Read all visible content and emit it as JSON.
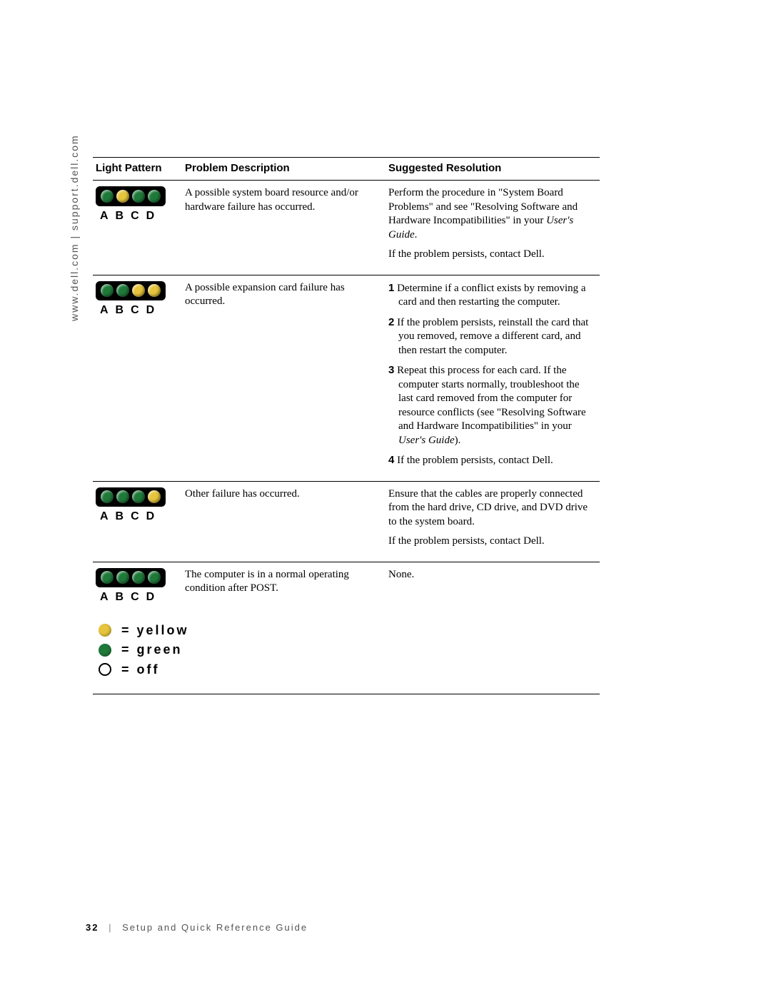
{
  "colors": {
    "yellow": "#e6c43c",
    "green": "#1f7a3a",
    "off_border": "#000000",
    "black": "#000000",
    "white": "#ffffff"
  },
  "side_text": "www.dell.com | support.dell.com",
  "headers": {
    "pattern": "Light Pattern",
    "description": "Problem Description",
    "resolution": "Suggested Resolution"
  },
  "rows": [
    {
      "lights": [
        "green",
        "yellow",
        "green",
        "green"
      ],
      "labels": "ABCD",
      "description": "A possible system board resource and/or hardware failure has occurred.",
      "res_paras": [
        "Perform the procedure in \"System Board Problems\" and see \"Resolving Software and Hardware Incompatibilities\" in your <i>User's Guide</i>.",
        "If the problem persists, contact Dell."
      ]
    },
    {
      "lights": [
        "green",
        "green",
        "yellow",
        "yellow"
      ],
      "labels": "ABCD",
      "description": "A possible expansion card failure has occurred.",
      "res_list": [
        "Determine if a conflict exists by removing a card and then restarting the computer.",
        "If the problem persists, reinstall the card that you removed, remove a different card, and then restart the computer.",
        "Repeat this process for each card. If the computer starts normally, troubleshoot the last card removed from the computer for resource conflicts (see \"Resolving Software and Hardware Incompatibilities\" in your <i>User's Guide</i>).",
        "If the problem persists, contact Dell."
      ]
    },
    {
      "lights": [
        "green",
        "green",
        "green",
        "yellow"
      ],
      "labels": "ABCD",
      "description": "Other failure has occurred.",
      "res_paras": [
        "Ensure that the cables are properly connected from the hard drive, CD drive, and DVD drive to the system board.",
        "If the problem persists, contact Dell."
      ]
    },
    {
      "lights": [
        "green",
        "green",
        "green",
        "green"
      ],
      "labels": "ABCD",
      "description": "The computer is in a normal operating condition after POST.",
      "res_paras": [
        "None."
      ]
    }
  ],
  "legend": [
    {
      "kind": "yellow",
      "text": "= yellow"
    },
    {
      "kind": "green",
      "text": "= green"
    },
    {
      "kind": "off",
      "text": "= off"
    }
  ],
  "footer": {
    "page": "32",
    "title": "Setup and Quick Reference Guide"
  }
}
